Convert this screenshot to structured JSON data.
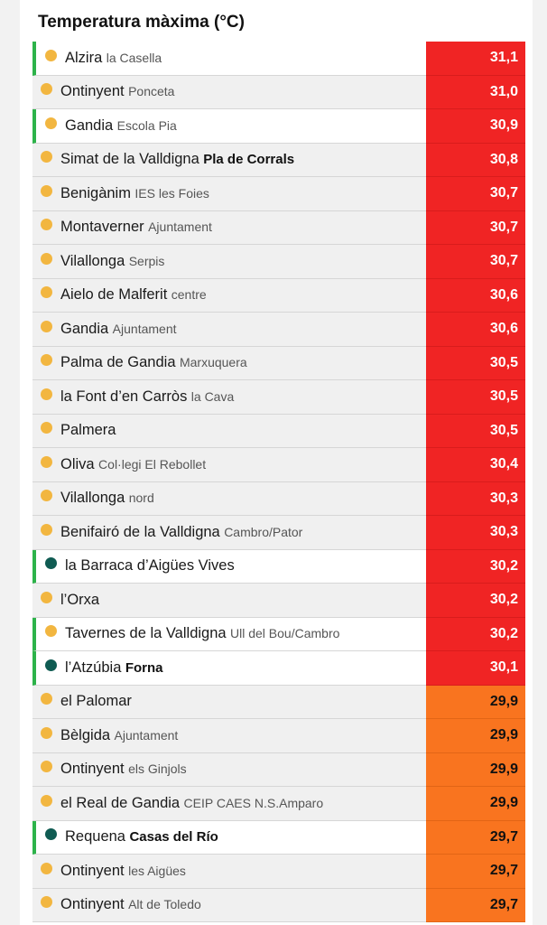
{
  "title": "Temperatura màxima (°C)",
  "colors": {
    "red": "#f02424",
    "orange": "#f9741f",
    "flag": "#2db34a",
    "dot_yellow": "#f2b640",
    "dot_teal": "#0f5b52"
  },
  "rows": [
    {
      "place": "Alzira",
      "sub": "la Casella",
      "value": "31,1",
      "flag": true,
      "teal": false,
      "bold": false,
      "band": "red"
    },
    {
      "place": "Ontinyent",
      "sub": "Ponceta",
      "value": "31,0",
      "flag": false,
      "teal": false,
      "bold": false,
      "band": "red"
    },
    {
      "place": "Gandia",
      "sub": "Escola Pia",
      "value": "30,9",
      "flag": true,
      "teal": false,
      "bold": false,
      "band": "red"
    },
    {
      "place": "Simat de la Valldigna",
      "sub": "Pla de Corrals",
      "value": "30,8",
      "flag": false,
      "teal": false,
      "bold": true,
      "band": "red"
    },
    {
      "place": "Benigànim",
      "sub": "IES les Foies",
      "value": "30,7",
      "flag": false,
      "teal": false,
      "bold": false,
      "band": "red"
    },
    {
      "place": "Montaverner",
      "sub": "Ajuntament",
      "value": "30,7",
      "flag": false,
      "teal": false,
      "bold": false,
      "band": "red"
    },
    {
      "place": "Vilallonga",
      "sub": "Serpis",
      "value": "30,7",
      "flag": false,
      "teal": false,
      "bold": false,
      "band": "red"
    },
    {
      "place": "Aielo de Malferit",
      "sub": "centre",
      "value": "30,6",
      "flag": false,
      "teal": false,
      "bold": false,
      "band": "red"
    },
    {
      "place": "Gandia",
      "sub": "Ajuntament",
      "value": "30,6",
      "flag": false,
      "teal": false,
      "bold": false,
      "band": "red"
    },
    {
      "place": "Palma de Gandia",
      "sub": "Marxuquera",
      "value": "30,5",
      "flag": false,
      "teal": false,
      "bold": false,
      "band": "red"
    },
    {
      "place": "la Font d’en Carròs",
      "sub": "la Cava",
      "value": "30,5",
      "flag": false,
      "teal": false,
      "bold": false,
      "band": "red"
    },
    {
      "place": "Palmera",
      "sub": "",
      "value": "30,5",
      "flag": false,
      "teal": false,
      "bold": false,
      "band": "red"
    },
    {
      "place": "Oliva",
      "sub": "Col·legi El Rebollet",
      "value": "30,4",
      "flag": false,
      "teal": false,
      "bold": false,
      "band": "red"
    },
    {
      "place": "Vilallonga",
      "sub": "nord",
      "value": "30,3",
      "flag": false,
      "teal": false,
      "bold": false,
      "band": "red"
    },
    {
      "place": "Benifairó de la Valldigna",
      "sub": "Cambro/Pator",
      "value": "30,3",
      "flag": false,
      "teal": false,
      "bold": false,
      "band": "red"
    },
    {
      "place": "la Barraca d’Aigües Vives",
      "sub": "",
      "value": "30,2",
      "flag": true,
      "teal": true,
      "bold": false,
      "band": "red"
    },
    {
      "place": "l’Orxa",
      "sub": "",
      "value": "30,2",
      "flag": false,
      "teal": false,
      "bold": false,
      "band": "red"
    },
    {
      "place": "Tavernes de la Valldigna",
      "sub": "Ull del Bou/Cambro",
      "value": "30,2",
      "flag": true,
      "teal": false,
      "bold": false,
      "band": "red"
    },
    {
      "place": "l’Atzúbia",
      "sub": "Forna",
      "value": "30,1",
      "flag": true,
      "teal": true,
      "bold": true,
      "band": "red"
    },
    {
      "place": "el Palomar",
      "sub": "",
      "value": "29,9",
      "flag": false,
      "teal": false,
      "bold": false,
      "band": "orange"
    },
    {
      "place": "Bèlgida",
      "sub": "Ajuntament",
      "value": "29,9",
      "flag": false,
      "teal": false,
      "bold": false,
      "band": "orange"
    },
    {
      "place": "Ontinyent",
      "sub": "els Ginjols",
      "value": "29,9",
      "flag": false,
      "teal": false,
      "bold": false,
      "band": "orange"
    },
    {
      "place": "el Real de Gandia",
      "sub": "CEIP CAES N.S.Amparo",
      "value": "29,9",
      "flag": false,
      "teal": false,
      "bold": false,
      "band": "orange"
    },
    {
      "place": "Requena",
      "sub": "Casas del Río",
      "value": "29,7",
      "flag": true,
      "teal": true,
      "bold": true,
      "band": "orange"
    },
    {
      "place": "Ontinyent",
      "sub": "les Aigües",
      "value": "29,7",
      "flag": false,
      "teal": false,
      "bold": false,
      "band": "orange"
    },
    {
      "place": "Ontinyent",
      "sub": "Alt de Toledo",
      "value": "29,7",
      "flag": false,
      "teal": false,
      "bold": false,
      "band": "orange"
    }
  ]
}
